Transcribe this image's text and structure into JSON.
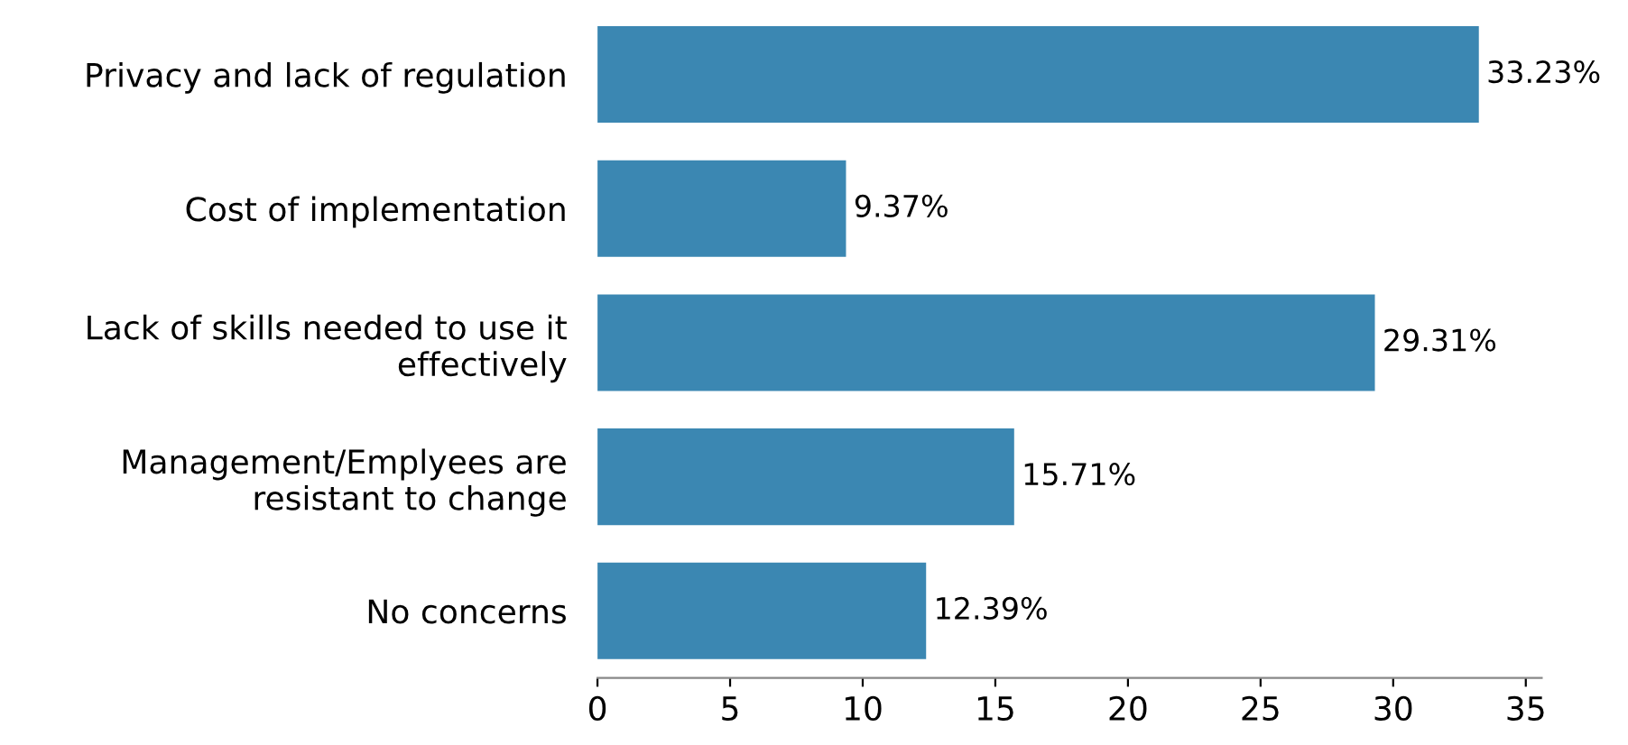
{
  "chart_data": {
    "type": "bar",
    "orientation": "horizontal",
    "categories": [
      "Privacy and lack of regulation",
      "Cost of implementation",
      "Lack of skills needed to use it\neffectively",
      "Management/Emplyees are\nresistant to change",
      "No concerns"
    ],
    "values": [
      33.23,
      9.37,
      29.31,
      15.71,
      12.39
    ],
    "value_labels": [
      "33.23%",
      "9.37%",
      "29.31%",
      "15.71%",
      "12.39%"
    ],
    "color": "#3b87b2",
    "xlim": [
      0,
      35.6
    ],
    "xticks": [
      0,
      5,
      10,
      15,
      20,
      25,
      30,
      35
    ],
    "grid": false
  }
}
